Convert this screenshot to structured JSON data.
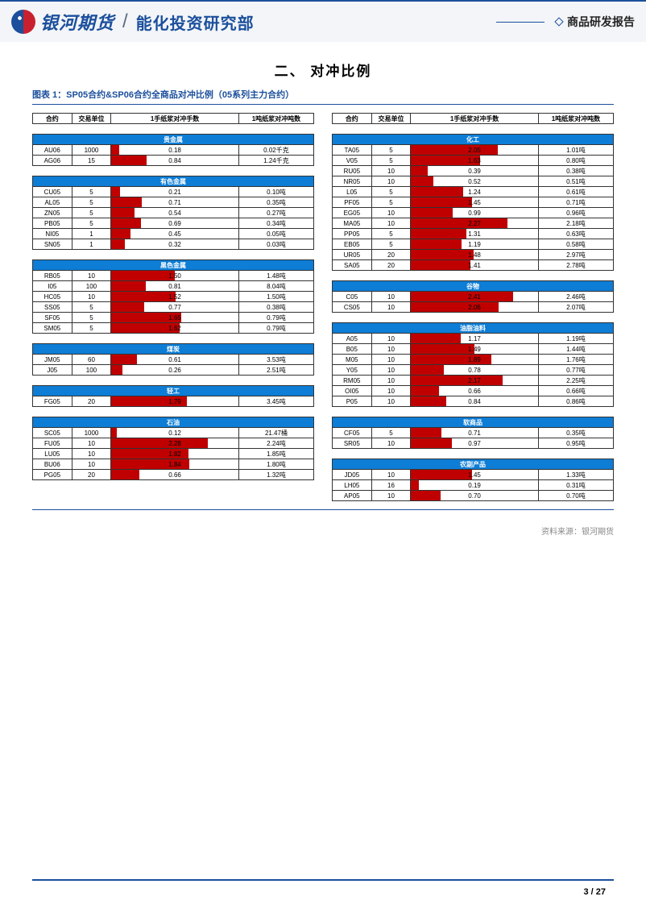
{
  "header": {
    "brand": "银河期货",
    "department": "能化投资研究部",
    "report_label": "商品研发报告"
  },
  "section_title": "二、   对冲比例",
  "figure_title": "图表 1：SP05合约&SP06合约全商品对冲比例（05系列主力合约）",
  "column_headers": [
    "合约",
    "交易单位",
    "1手纸浆对冲手数",
    "1吨纸浆对冲吨数"
  ],
  "bar_max": 3.0,
  "left_groups": [
    {
      "name": "贵金属",
      "rows": [
        {
          "code": "AU06",
          "unit": "1000",
          "lots": 0.18,
          "tons": "0.02千克"
        },
        {
          "code": "AG06",
          "unit": "15",
          "lots": 0.84,
          "tons": "1.24千克"
        }
      ]
    },
    {
      "name": "有色金属",
      "rows": [
        {
          "code": "CU05",
          "unit": "5",
          "lots": 0.21,
          "tons": "0.10吨"
        },
        {
          "code": "AL05",
          "unit": "5",
          "lots": 0.71,
          "tons": "0.35吨"
        },
        {
          "code": "ZN05",
          "unit": "5",
          "lots": 0.54,
          "tons": "0.27吨"
        },
        {
          "code": "PB05",
          "unit": "5",
          "lots": 0.69,
          "tons": "0.34吨"
        },
        {
          "code": "NI05",
          "unit": "1",
          "lots": 0.45,
          "tons": "0.05吨"
        },
        {
          "code": "SN05",
          "unit": "1",
          "lots": 0.32,
          "tons": "0.03吨"
        }
      ]
    },
    {
      "name": "黑色金属",
      "rows": [
        {
          "code": "RB05",
          "unit": "10",
          "lots": 1.5,
          "tons": "1.48吨"
        },
        {
          "code": "I05",
          "unit": "100",
          "lots": 0.81,
          "tons": "8.04吨"
        },
        {
          "code": "HC05",
          "unit": "10",
          "lots": 1.52,
          "tons": "1.50吨"
        },
        {
          "code": "SS05",
          "unit": "5",
          "lots": 0.77,
          "tons": "0.38吨"
        },
        {
          "code": "SF05",
          "unit": "5",
          "lots": 1.65,
          "tons": "0.79吨"
        },
        {
          "code": "SM05",
          "unit": "5",
          "lots": 1.62,
          "tons": "0.79吨"
        }
      ]
    },
    {
      "name": "煤炭",
      "rows": [
        {
          "code": "JM05",
          "unit": "60",
          "lots": 0.61,
          "tons": "3.53吨"
        },
        {
          "code": "J05",
          "unit": "100",
          "lots": 0.26,
          "tons": "2.51吨"
        }
      ]
    },
    {
      "name": "轻工",
      "rows": [
        {
          "code": "FG05",
          "unit": "20",
          "lots": 1.79,
          "tons": "3.45吨"
        }
      ]
    },
    {
      "name": "石油",
      "rows": [
        {
          "code": "SC05",
          "unit": "1000",
          "lots": 0.12,
          "tons": "21.47桶"
        },
        {
          "code": "FU05",
          "unit": "10",
          "lots": 2.28,
          "tons": "2.24吨"
        },
        {
          "code": "LU05",
          "unit": "10",
          "lots": 1.82,
          "tons": "1.85吨"
        },
        {
          "code": "BU06",
          "unit": "10",
          "lots": 1.84,
          "tons": "1.80吨"
        },
        {
          "code": "PG05",
          "unit": "20",
          "lots": 0.66,
          "tons": "1.32吨"
        }
      ]
    }
  ],
  "right_groups": [
    {
      "name": "化工",
      "rows": [
        {
          "code": "TA05",
          "unit": "5",
          "lots": 2.05,
          "tons": "1.01吨"
        },
        {
          "code": "V05",
          "unit": "5",
          "lots": 1.63,
          "tons": "0.80吨"
        },
        {
          "code": "RU05",
          "unit": "10",
          "lots": 0.39,
          "tons": "0.38吨"
        },
        {
          "code": "NR05",
          "unit": "10",
          "lots": 0.52,
          "tons": "0.51吨"
        },
        {
          "code": "L05",
          "unit": "5",
          "lots": 1.24,
          "tons": "0.61吨"
        },
        {
          "code": "PF05",
          "unit": "5",
          "lots": 1.45,
          "tons": "0.71吨"
        },
        {
          "code": "EG05",
          "unit": "10",
          "lots": 0.99,
          "tons": "0.96吨"
        },
        {
          "code": "MA05",
          "unit": "10",
          "lots": 2.27,
          "tons": "2.18吨"
        },
        {
          "code": "PP05",
          "unit": "5",
          "lots": 1.31,
          "tons": "0.63吨"
        },
        {
          "code": "EB05",
          "unit": "5",
          "lots": 1.19,
          "tons": "0.58吨"
        },
        {
          "code": "UR05",
          "unit": "20",
          "lots": 1.48,
          "tons": "2.97吨"
        },
        {
          "code": "SA05",
          "unit": "20",
          "lots": 1.41,
          "tons": "2.78吨"
        }
      ]
    },
    {
      "name": "谷物",
      "rows": [
        {
          "code": "C05",
          "unit": "10",
          "lots": 2.41,
          "tons": "2.46吨"
        },
        {
          "code": "CS05",
          "unit": "10",
          "lots": 2.06,
          "tons": "2.07吨"
        }
      ]
    },
    {
      "name": "油脂油料",
      "rows": [
        {
          "code": "A05",
          "unit": "10",
          "lots": 1.17,
          "tons": "1.19吨"
        },
        {
          "code": "B05",
          "unit": "10",
          "lots": 1.49,
          "tons": "1.44吨"
        },
        {
          "code": "M05",
          "unit": "10",
          "lots": 1.89,
          "tons": "1.76吨"
        },
        {
          "code": "Y05",
          "unit": "10",
          "lots": 0.78,
          "tons": "0.77吨"
        },
        {
          "code": "RM05",
          "unit": "10",
          "lots": 2.17,
          "tons": "2.25吨"
        },
        {
          "code": "OI05",
          "unit": "10",
          "lots": 0.66,
          "tons": "0.66吨"
        },
        {
          "code": "P05",
          "unit": "10",
          "lots": 0.84,
          "tons": "0.86吨"
        }
      ]
    },
    {
      "name": "软商品",
      "rows": [
        {
          "code": "CF05",
          "unit": "5",
          "lots": 0.71,
          "tons": "0.35吨"
        },
        {
          "code": "SR05",
          "unit": "10",
          "lots": 0.97,
          "tons": "0.95吨"
        }
      ]
    },
    {
      "name": "农副产品",
      "rows": [
        {
          "code": "JD05",
          "unit": "10",
          "lots": 1.45,
          "tons": "1.33吨"
        },
        {
          "code": "LH05",
          "unit": "16",
          "lots": 0.19,
          "tons": "0.31吨"
        },
        {
          "code": "AP05",
          "unit": "10",
          "lots": 0.7,
          "tons": "0.70吨"
        }
      ]
    }
  ],
  "source": "资料来源：银河期货",
  "page": {
    "current": "3",
    "sep": " / ",
    "total": "27"
  },
  "colors": {
    "brand_blue": "#1b4f9c",
    "header_blue": "#0d7dd6",
    "bar_red": "#c00000",
    "header_bg": "#f3f5f8"
  }
}
